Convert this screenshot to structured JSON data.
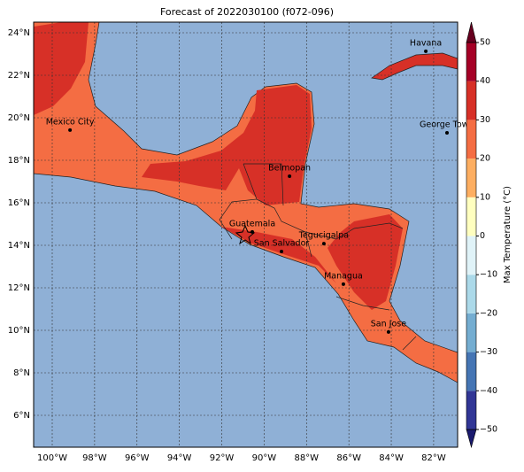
{
  "title": "Forecast of 2022030100 (f072-096)",
  "lat_ticks": [
    {
      "value": 6,
      "label": "6°N"
    },
    {
      "value": 8,
      "label": "8°N"
    },
    {
      "value": 10,
      "label": "10°N"
    },
    {
      "value": 12,
      "label": "12°N"
    },
    {
      "value": 14,
      "label": "14°N"
    },
    {
      "value": 16,
      "label": "16°N"
    },
    {
      "value": 18,
      "label": "18°N"
    },
    {
      "value": 20,
      "label": "20°N"
    },
    {
      "value": 22,
      "label": "22°N"
    },
    {
      "value": 24,
      "label": "24°N"
    }
  ],
  "lon_ticks": [
    {
      "value": -100,
      "label": "100°W"
    },
    {
      "value": -98,
      "label": "98°W"
    },
    {
      "value": -96,
      "label": "96°W"
    },
    {
      "value": -94,
      "label": "94°W"
    },
    {
      "value": -92,
      "label": "92°W"
    },
    {
      "value": -90,
      "label": "90°W"
    },
    {
      "value": -88,
      "label": "88°W"
    },
    {
      "value": -86,
      "label": "86°W"
    },
    {
      "value": -84,
      "label": "84°W"
    },
    {
      "value": -82,
      "label": "82°W"
    }
  ],
  "cities": [
    {
      "name": "Havana",
      "lon": -82.37,
      "lat": 23.13
    },
    {
      "name": "Mexico City",
      "lon": -99.16,
      "lat": 19.42
    },
    {
      "name": "George Town",
      "lon": -81.37,
      "lat": 19.29
    },
    {
      "name": "Belmopan",
      "lon": -88.8,
      "lat": 17.25
    },
    {
      "name": "Guatemala",
      "lon": -90.56,
      "lat": 14.63
    },
    {
      "name": "San Salvador",
      "lon": -89.18,
      "lat": 13.71
    },
    {
      "name": "Tegucigalpa",
      "lon": -87.18,
      "lat": 14.08
    },
    {
      "name": "Managua",
      "lon": -86.26,
      "lat": 12.17
    },
    {
      "name": "San Jose",
      "lon": -84.13,
      "lat": 9.92
    }
  ],
  "colorbar": {
    "label": "Max Temperature (°C)",
    "ticks": [
      {
        "value": -50,
        "label": "−50"
      },
      {
        "value": -40,
        "label": "−40"
      },
      {
        "value": -30,
        "label": "−30"
      },
      {
        "value": -20,
        "label": "−20"
      },
      {
        "value": -10,
        "label": "−10"
      },
      0,
      10,
      20,
      30,
      40,
      50
    ],
    "colors": [
      "#313695",
      "#4575b4",
      "#74add1",
      "#abd9e9",
      "#e0f3f8",
      "#ffffbf",
      "#fdae61",
      "#f46d43",
      "#d73027",
      "#a50026"
    ]
  }
}
